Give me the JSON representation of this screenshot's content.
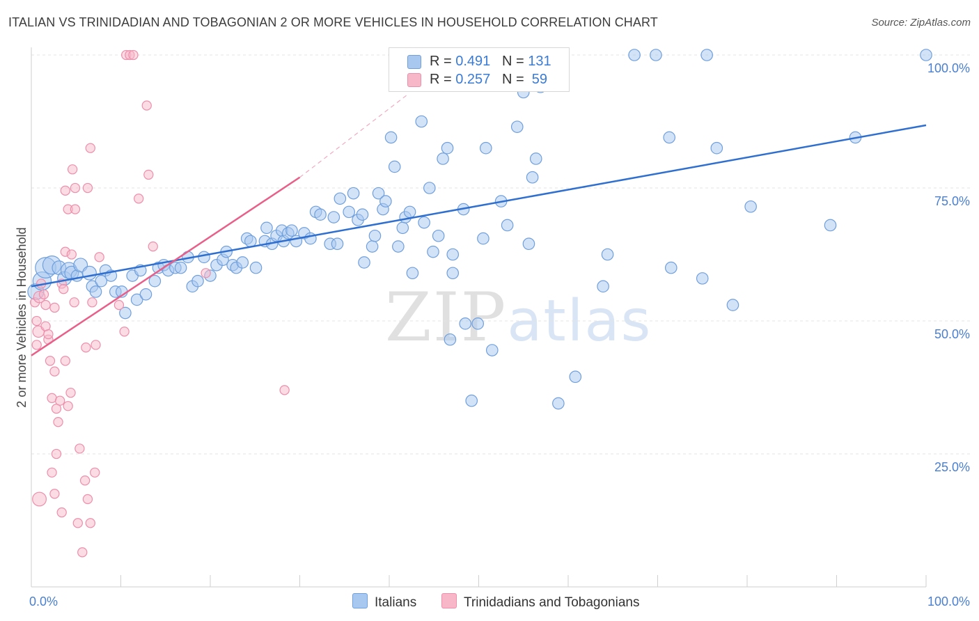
{
  "header": {
    "title": "ITALIAN VS TRINIDADIAN AND TOBAGONIAN 2 OR MORE VEHICLES IN HOUSEHOLD CORRELATION CHART",
    "source": "Source: ZipAtlas.com"
  },
  "legend": {
    "r_label": "R =",
    "n_label": "N =",
    "rows": [
      {
        "r": "0.491",
        "n": "131",
        "color": "#a8c8f0"
      },
      {
        "r": "0.257",
        "n": "59",
        "color": "#f7b7c9"
      }
    ]
  },
  "bottom_legend": [
    {
      "label": "Italians",
      "color": "#a8c8f0"
    },
    {
      "label": "Trinidadians and Tobagonians",
      "color": "#f7b7c9"
    }
  ],
  "watermark": {
    "zip": "ZIP",
    "atlas": "atlas"
  },
  "chart_data": {
    "type": "scatter",
    "title": "ITALIAN VS TRINIDADIAN AND TOBAGONIAN 2 OR MORE VEHICLES IN HOUSEHOLD CORRELATION CHART",
    "xlabel": "",
    "ylabel": "2 or more Vehicles in Household",
    "xlim": [
      0,
      100
    ],
    "ylim": [
      0,
      100
    ],
    "x_tick_labels": [
      "0.0%",
      "100.0%"
    ],
    "y_ticks": [
      25,
      50,
      75,
      100
    ],
    "y_tick_labels": [
      "25.0%",
      "50.0%",
      "75.0%",
      "100.0%"
    ],
    "grid": true,
    "series": [
      {
        "name": "Italians",
        "color": "#a8c8f0",
        "stroke": "#6f9fdc",
        "trend": {
          "x": [
            0,
            100
          ],
          "y": [
            56.5,
            86.8
          ],
          "color": "#2f6fcf"
        },
        "points": [
          [
            0.5,
            55.5,
            14
          ],
          [
            1.2,
            57.5,
            16
          ],
          [
            1.6,
            60,
            18
          ],
          [
            2.3,
            60.5,
            16
          ],
          [
            3.1,
            60,
            12
          ],
          [
            3.7,
            58,
            12
          ],
          [
            4.2,
            59.5,
            14
          ],
          [
            4.5,
            59,
            12
          ],
          [
            5.1,
            58.5,
            10
          ],
          [
            5.5,
            60.5,
            12
          ],
          [
            6.5,
            59,
            12
          ],
          [
            6.8,
            56.5,
            10
          ],
          [
            7.2,
            55.5,
            10
          ],
          [
            7.8,
            57.5,
            10
          ],
          [
            8.3,
            59.5,
            10
          ],
          [
            8.9,
            58.5,
            10
          ],
          [
            9.4,
            55.5,
            10
          ],
          [
            10.1,
            55.5,
            10
          ],
          [
            10.5,
            51.5,
            10
          ],
          [
            11.3,
            58.5,
            10
          ],
          [
            11.8,
            54,
            10
          ],
          [
            12.2,
            59.5,
            10
          ],
          [
            12.8,
            55,
            10
          ],
          [
            13.8,
            57.5,
            10
          ],
          [
            14.2,
            60,
            10
          ],
          [
            14.8,
            60.5,
            10
          ],
          [
            15.3,
            59.5,
            10
          ],
          [
            16.1,
            60,
            10
          ],
          [
            16.7,
            60,
            10
          ],
          [
            17.5,
            62,
            10
          ],
          [
            18,
            56.5,
            10
          ],
          [
            18.6,
            57.5,
            10
          ],
          [
            19.3,
            62,
            10
          ],
          [
            20,
            58.5,
            10
          ],
          [
            20.7,
            60.5,
            10
          ],
          [
            21.4,
            61.5,
            10
          ],
          [
            21.8,
            63,
            10
          ],
          [
            22.5,
            60.5,
            10
          ],
          [
            22.9,
            60,
            10
          ],
          [
            23.6,
            61,
            10
          ],
          [
            24.1,
            65.5,
            10
          ],
          [
            24.5,
            65,
            10
          ],
          [
            25.1,
            60,
            10
          ],
          [
            26.1,
            65,
            10
          ],
          [
            26.3,
            67.5,
            10
          ],
          [
            26.9,
            64.5,
            10
          ],
          [
            27.4,
            66,
            10
          ],
          [
            28,
            67,
            10
          ],
          [
            28.2,
            65,
            10
          ],
          [
            28.7,
            66.5,
            10
          ],
          [
            29.1,
            67,
            10
          ],
          [
            29.6,
            65,
            10
          ],
          [
            30.5,
            66.5,
            10
          ],
          [
            31.2,
            65.5,
            10
          ],
          [
            31.8,
            70.5,
            10
          ],
          [
            32.3,
            70,
            10
          ],
          [
            33.4,
            64.5,
            10
          ],
          [
            33.8,
            69.5,
            10
          ],
          [
            34.2,
            64.5,
            10
          ],
          [
            34.5,
            73,
            10
          ],
          [
            35.5,
            70.5,
            10
          ],
          [
            36,
            74,
            10
          ],
          [
            36.5,
            69,
            10
          ],
          [
            37,
            70,
            10
          ],
          [
            37.2,
            61,
            10
          ],
          [
            38.1,
            64,
            10
          ],
          [
            38.4,
            66,
            10
          ],
          [
            38.8,
            74,
            10
          ],
          [
            39.3,
            71,
            10
          ],
          [
            39.6,
            72.5,
            10
          ],
          [
            40.2,
            84.5,
            10
          ],
          [
            40.6,
            79,
            10
          ],
          [
            41,
            64,
            10
          ],
          [
            41.5,
            67.5,
            10
          ],
          [
            41.8,
            69.5,
            10
          ],
          [
            42.3,
            70.5,
            10
          ],
          [
            42.6,
            59,
            10
          ],
          [
            43.6,
            87.5,
            10
          ],
          [
            43.9,
            68.5,
            10
          ],
          [
            44.5,
            75,
            10
          ],
          [
            44.9,
            63,
            10
          ],
          [
            45.5,
            66,
            10
          ],
          [
            46,
            80.5,
            10
          ],
          [
            46.5,
            82.5,
            10
          ],
          [
            46.8,
            46.5,
            10
          ],
          [
            47.1,
            59,
            10
          ],
          [
            47.1,
            62.5,
            10
          ],
          [
            47.7,
            100,
            10
          ],
          [
            48.3,
            71,
            10
          ],
          [
            48.5,
            49.5,
            10
          ],
          [
            49.2,
            35,
            10
          ],
          [
            49.9,
            49.5,
            10
          ],
          [
            50.5,
            65.5,
            10
          ],
          [
            50.8,
            82.5,
            10
          ],
          [
            51.5,
            44.5,
            10
          ],
          [
            52.5,
            72.5,
            10
          ],
          [
            53.2,
            68,
            10
          ],
          [
            54.3,
            86.5,
            10
          ],
          [
            55,
            93,
            10
          ],
          [
            55.6,
            64.5,
            10
          ],
          [
            56,
            77,
            10
          ],
          [
            56.4,
            80.5,
            10
          ],
          [
            56.9,
            94,
            10
          ],
          [
            58.9,
            34.5,
            10
          ],
          [
            60.8,
            39.5,
            10
          ],
          [
            63.9,
            56.5,
            10
          ],
          [
            64.4,
            62.5,
            10
          ],
          [
            67.4,
            100,
            10
          ],
          [
            69.8,
            100,
            10
          ],
          [
            71.3,
            84.5,
            10
          ],
          [
            71.5,
            60,
            10
          ],
          [
            75,
            58,
            10
          ],
          [
            75.5,
            100,
            10
          ],
          [
            76.6,
            82.5,
            10
          ],
          [
            78.4,
            53,
            10
          ],
          [
            80.4,
            71.5,
            10
          ],
          [
            89.3,
            68,
            10
          ],
          [
            92.1,
            84.5,
            10
          ],
          [
            100,
            100,
            10
          ]
        ]
      },
      {
        "name": "Trinidadians and Tobagonians",
        "color": "#f7b7c9",
        "stroke": "#ec8fab",
        "trend": {
          "x": [
            0,
            30
          ],
          "y": [
            43.5,
            77
          ],
          "color": "#e8608a"
        },
        "trend_dashed": {
          "x": [
            30,
            42
          ],
          "y": [
            77,
            92.5
          ]
        },
        "points": [
          [
            0.4,
            53.5,
            8
          ],
          [
            0.6,
            50,
            8
          ],
          [
            0.6,
            45.5,
            8
          ],
          [
            0.8,
            48,
            10
          ],
          [
            0.9,
            54.5,
            10
          ],
          [
            0.9,
            16.5,
            12
          ],
          [
            1.1,
            57,
            8
          ],
          [
            1.4,
            55,
            8
          ],
          [
            1.6,
            53,
            8
          ],
          [
            1.6,
            49,
            8
          ],
          [
            1.9,
            46.5,
            8
          ],
          [
            1.9,
            47.5,
            8
          ],
          [
            2.1,
            42.5,
            8
          ],
          [
            2.3,
            35.5,
            8
          ],
          [
            2.3,
            21.5,
            8
          ],
          [
            2.6,
            52.5,
            8
          ],
          [
            2.6,
            40.5,
            8
          ],
          [
            2.6,
            17.5,
            8
          ],
          [
            2.8,
            25,
            8
          ],
          [
            2.8,
            33.5,
            8
          ],
          [
            3,
            31,
            8
          ],
          [
            3.2,
            35,
            8
          ],
          [
            3.4,
            14,
            8
          ],
          [
            3.4,
            57,
            8
          ],
          [
            3.6,
            56,
            8
          ],
          [
            3.8,
            42.5,
            8
          ],
          [
            3.8,
            63,
            8
          ],
          [
            3.8,
            74.5,
            8
          ],
          [
            4.1,
            71,
            8
          ],
          [
            4.1,
            34,
            8
          ],
          [
            4.4,
            36.5,
            8
          ],
          [
            4.5,
            62.5,
            8
          ],
          [
            4.6,
            78.5,
            8
          ],
          [
            4.8,
            53.5,
            8
          ],
          [
            4.9,
            75,
            8
          ],
          [
            4.9,
            71,
            8
          ],
          [
            5.2,
            12,
            8
          ],
          [
            5.4,
            26,
            8
          ],
          [
            5.7,
            6.5,
            8
          ],
          [
            6,
            20,
            8
          ],
          [
            6.1,
            45,
            8
          ],
          [
            6.3,
            16.5,
            8
          ],
          [
            6.3,
            75,
            8
          ],
          [
            6.6,
            12,
            8
          ],
          [
            6.6,
            82.5,
            8
          ],
          [
            6.8,
            53.5,
            8
          ],
          [
            7.1,
            21.5,
            8
          ],
          [
            7.2,
            45.5,
            8
          ],
          [
            7.6,
            62,
            8
          ],
          [
            9.8,
            53,
            8
          ],
          [
            10.4,
            48,
            8
          ],
          [
            10.6,
            100,
            8
          ],
          [
            11,
            100,
            8
          ],
          [
            11.4,
            100,
            8
          ],
          [
            12,
            73,
            8
          ],
          [
            12.9,
            90.5,
            8
          ],
          [
            13.1,
            77.5,
            8
          ],
          [
            13.6,
            64,
            8
          ],
          [
            19.5,
            59,
            8
          ],
          [
            28.3,
            37,
            8
          ]
        ]
      }
    ]
  }
}
